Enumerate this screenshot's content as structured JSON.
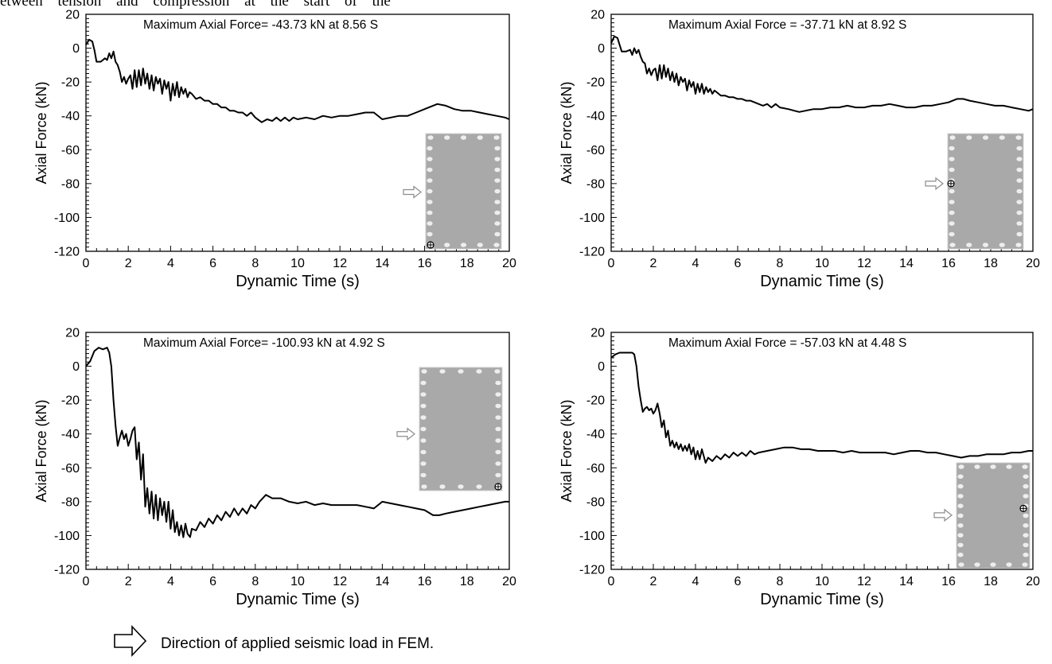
{
  "page_header_fragment": "etween tension and compression at the start of the",
  "footnote": "Direction of applied seismic load in FEM.",
  "chart_data": [
    {
      "type": "line",
      "title": "",
      "annotation": "Maximum Axial Force= -43.73 kN at 8.56 S",
      "xlabel": "Dynamic Time (s)",
      "ylabel": "Axial Force (kN)",
      "xlim": [
        0,
        20
      ],
      "ylim": [
        -120,
        20
      ],
      "xticks": [
        0,
        2,
        4,
        6,
        8,
        10,
        12,
        14,
        16,
        18,
        20
      ],
      "yticks": [
        20,
        0,
        -20,
        -40,
        -60,
        -80,
        -100,
        -120
      ],
      "series": [
        {
          "color": "#000000",
          "x": [
            0,
            0.15,
            0.3,
            0.4,
            0.5,
            0.7,
            0.9,
            1.0,
            1.1,
            1.2,
            1.3,
            1.4,
            1.5,
            1.6,
            1.7,
            1.8,
            1.9,
            2.0,
            2.1,
            2.2,
            2.3,
            2.4,
            2.5,
            2.6,
            2.7,
            2.8,
            2.9,
            3.0,
            3.1,
            3.2,
            3.3,
            3.4,
            3.5,
            3.6,
            3.7,
            3.8,
            3.9,
            4.0,
            4.1,
            4.2,
            4.3,
            4.4,
            4.5,
            4.6,
            4.7,
            4.8,
            4.9,
            5.0,
            5.2,
            5.4,
            5.6,
            5.8,
            6.0,
            6.2,
            6.4,
            6.6,
            6.8,
            7.0,
            7.2,
            7.4,
            7.6,
            7.8,
            8.0,
            8.3,
            8.56,
            8.8,
            9.0,
            9.2,
            9.4,
            9.6,
            9.8,
            10.0,
            10.4,
            10.8,
            11.2,
            11.6,
            12.0,
            12.4,
            12.8,
            13.2,
            13.6,
            14.0,
            14.4,
            14.8,
            15.2,
            15.6,
            16.0,
            16.4,
            16.6,
            17.0,
            17.4,
            17.8,
            18.2,
            18.6,
            19.0,
            19.4,
            19.8,
            20.0
          ],
          "y": [
            2,
            5,
            4,
            -1,
            -8,
            -8,
            -6,
            -7,
            -3,
            -6,
            -2,
            -8,
            -10,
            -14,
            -20,
            -17,
            -21,
            -18,
            -16,
            -24,
            -13,
            -23,
            -13,
            -22,
            -12,
            -21,
            -15,
            -24,
            -16,
            -25,
            -17,
            -21,
            -18,
            -27,
            -19,
            -24,
            -20,
            -31,
            -21,
            -28,
            -20,
            -29,
            -23,
            -27,
            -24,
            -29,
            -26,
            -27,
            -30,
            -29,
            -31,
            -31,
            -33,
            -33,
            -35,
            -35,
            -37,
            -37,
            -38,
            -38,
            -40,
            -38,
            -41,
            -43.73,
            -42,
            -43,
            -41,
            -43,
            -41,
            -43,
            -41,
            -42,
            -41,
            -42,
            -40,
            -41,
            -40,
            -40,
            -39,
            -38,
            -38,
            -42,
            -41,
            -40,
            -40,
            -38,
            -36,
            -34,
            -33,
            -34,
            -36,
            -37,
            -37,
            -38,
            -39,
            -40,
            -41,
            -42
          ]
        }
      ],
      "inset": {
        "arrow_y_data": -85,
        "marker": "bottom-left corner"
      }
    },
    {
      "type": "line",
      "title": "",
      "annotation": "Maximum Axial Force = -37.71 kN at 8.92 S",
      "xlabel": "Dynamic Time (s)",
      "ylabel": "Axial Force (kN)",
      "xlim": [
        0,
        20
      ],
      "ylim": [
        -120,
        20
      ],
      "xticks": [
        0,
        2,
        4,
        6,
        8,
        10,
        12,
        14,
        16,
        18,
        20
      ],
      "yticks": [
        20,
        0,
        -20,
        -40,
        -60,
        -80,
        -100,
        -120
      ],
      "series": [
        {
          "color": "#000000",
          "x": [
            0,
            0.15,
            0.3,
            0.4,
            0.5,
            0.7,
            0.9,
            1.0,
            1.1,
            1.2,
            1.3,
            1.4,
            1.5,
            1.6,
            1.7,
            1.8,
            1.9,
            2.0,
            2.1,
            2.2,
            2.3,
            2.4,
            2.5,
            2.6,
            2.7,
            2.8,
            2.9,
            3.0,
            3.1,
            3.2,
            3.3,
            3.4,
            3.5,
            3.6,
            3.7,
            3.8,
            3.9,
            4.0,
            4.1,
            4.2,
            4.3,
            4.4,
            4.5,
            4.6,
            4.7,
            4.8,
            4.9,
            5.0,
            5.2,
            5.4,
            5.6,
            5.8,
            6.0,
            6.2,
            6.4,
            6.6,
            6.8,
            7.0,
            7.2,
            7.4,
            7.6,
            7.8,
            8.0,
            8.4,
            8.7,
            8.92,
            9.2,
            9.6,
            10.0,
            10.4,
            10.8,
            11.2,
            11.6,
            12.0,
            12.4,
            12.8,
            13.2,
            13.6,
            14.0,
            14.4,
            14.8,
            15.2,
            15.6,
            16.0,
            16.4,
            16.7,
            17.0,
            17.4,
            17.8,
            18.2,
            18.6,
            19.0,
            19.4,
            19.8,
            20.0
          ],
          "y": [
            3,
            7,
            6,
            2,
            -2,
            -2,
            -1,
            -4,
            0,
            -3,
            -1,
            -5,
            -8,
            -9,
            -15,
            -12,
            -16,
            -13,
            -12,
            -19,
            -10,
            -18,
            -10,
            -17,
            -12,
            -19,
            -14,
            -20,
            -15,
            -22,
            -17,
            -20,
            -18,
            -25,
            -19,
            -23,
            -20,
            -27,
            -21,
            -26,
            -21,
            -27,
            -23,
            -26,
            -24,
            -27,
            -25,
            -26,
            -28,
            -28,
            -29,
            -29,
            -30,
            -30,
            -31,
            -31,
            -32,
            -33,
            -34,
            -33,
            -35,
            -33,
            -35,
            -36,
            -37,
            -37.71,
            -37,
            -36,
            -36,
            -35,
            -35,
            -34,
            -35,
            -35,
            -34,
            -34,
            -33,
            -34,
            -35,
            -35,
            -34,
            -34,
            -33,
            -32,
            -30,
            -30,
            -31,
            -32,
            -33,
            -34,
            -34,
            -35,
            -36,
            -37,
            -36
          ]
        }
      ],
      "inset": {
        "arrow_y_data": -80,
        "marker": "left edge"
      }
    },
    {
      "type": "line",
      "title": "",
      "annotation": "Maximum Axial Force= -100.93 kN at 4.92 S",
      "xlabel": "Dynamic Time (s)",
      "ylabel": "Axial Force (kN)",
      "xlim": [
        0,
        20
      ],
      "ylim": [
        -120,
        20
      ],
      "xticks": [
        0,
        2,
        4,
        6,
        8,
        10,
        12,
        14,
        16,
        18,
        20
      ],
      "yticks": [
        20,
        0,
        -20,
        -40,
        -60,
        -80,
        -100,
        -120
      ],
      "series": [
        {
          "color": "#000000",
          "x": [
            0,
            0.2,
            0.4,
            0.6,
            0.8,
            1.0,
            1.1,
            1.2,
            1.3,
            1.4,
            1.5,
            1.6,
            1.7,
            1.8,
            1.9,
            2.0,
            2.1,
            2.2,
            2.3,
            2.4,
            2.5,
            2.6,
            2.7,
            2.8,
            2.9,
            3.0,
            3.1,
            3.2,
            3.3,
            3.4,
            3.5,
            3.6,
            3.7,
            3.8,
            3.9,
            4.0,
            4.1,
            4.2,
            4.3,
            4.4,
            4.5,
            4.6,
            4.7,
            4.8,
            4.92,
            5.0,
            5.2,
            5.4,
            5.6,
            5.8,
            6.0,
            6.2,
            6.4,
            6.6,
            6.8,
            7.0,
            7.2,
            7.4,
            7.6,
            7.8,
            8.0,
            8.2,
            8.5,
            8.8,
            9.2,
            9.6,
            10.0,
            10.4,
            10.8,
            11.2,
            11.6,
            12.0,
            12.4,
            12.8,
            13.2,
            13.6,
            14.0,
            14.4,
            14.8,
            15.2,
            15.6,
            16.0,
            16.4,
            16.7,
            17.0,
            17.4,
            17.8,
            18.2,
            18.6,
            19.0,
            19.4,
            19.8,
            20.0
          ],
          "y": [
            0,
            3,
            9,
            11,
            10,
            11,
            8,
            0,
            -20,
            -35,
            -47,
            -42,
            -38,
            -43,
            -40,
            -47,
            -43,
            -38,
            -36,
            -55,
            -45,
            -67,
            -52,
            -83,
            -72,
            -87,
            -74,
            -90,
            -76,
            -91,
            -78,
            -88,
            -80,
            -92,
            -80,
            -96,
            -85,
            -98,
            -92,
            -100,
            -94,
            -101,
            -93,
            -99,
            -100.93,
            -96,
            -97,
            -92,
            -95,
            -90,
            -93,
            -88,
            -91,
            -86,
            -89,
            -84,
            -88,
            -84,
            -87,
            -82,
            -84,
            -80,
            -76,
            -78,
            -78,
            -80,
            -81,
            -80,
            -82,
            -81,
            -82,
            -82,
            -82,
            -82,
            -83,
            -84,
            -80,
            -81,
            -82,
            -83,
            -84,
            -85,
            -88,
            -88,
            -87,
            -86,
            -85,
            -84,
            -83,
            -82,
            -81,
            -80,
            -80
          ]
        }
      ],
      "inset": {
        "arrow_y_data": -40,
        "marker": "bottom-right corner"
      }
    },
    {
      "type": "line",
      "title": "",
      "annotation": "Maximum Axial Force = -57.03 kN at 4.48 S",
      "xlabel": "Dynamic Time (s)",
      "ylabel": "Axial Force (kN)",
      "xlim": [
        0,
        20
      ],
      "ylim": [
        -120,
        20
      ],
      "xticks": [
        0,
        2,
        4,
        6,
        8,
        10,
        12,
        14,
        16,
        18,
        20
      ],
      "yticks": [
        20,
        0,
        -20,
        -40,
        -60,
        -80,
        -100,
        -120
      ],
      "series": [
        {
          "color": "#000000",
          "x": [
            0,
            0.2,
            0.4,
            0.6,
            0.8,
            1.0,
            1.1,
            1.2,
            1.3,
            1.4,
            1.5,
            1.6,
            1.7,
            1.8,
            1.9,
            2.0,
            2.1,
            2.2,
            2.3,
            2.4,
            2.5,
            2.6,
            2.7,
            2.8,
            2.9,
            3.0,
            3.1,
            3.2,
            3.3,
            3.4,
            3.5,
            3.6,
            3.7,
            3.8,
            3.9,
            4.0,
            4.1,
            4.2,
            4.3,
            4.48,
            4.6,
            4.8,
            5.0,
            5.2,
            5.4,
            5.6,
            5.8,
            6.0,
            6.2,
            6.4,
            6.6,
            6.8,
            7.0,
            7.4,
            7.8,
            8.2,
            8.6,
            9.0,
            9.4,
            9.8,
            10.2,
            10.6,
            11.0,
            11.4,
            11.8,
            12.2,
            12.6,
            13.0,
            13.4,
            13.8,
            14.2,
            14.6,
            15.0,
            15.4,
            15.8,
            16.2,
            16.6,
            17.0,
            17.4,
            17.8,
            18.2,
            18.6,
            19.0,
            19.4,
            19.8,
            20.0
          ],
          "y": [
            5,
            7,
            8,
            8,
            8,
            8,
            7,
            0,
            -12,
            -20,
            -27,
            -25,
            -24,
            -26,
            -25,
            -28,
            -26,
            -22,
            -28,
            -36,
            -32,
            -42,
            -38,
            -47,
            -44,
            -48,
            -45,
            -49,
            -46,
            -50,
            -47,
            -50,
            -46,
            -52,
            -48,
            -55,
            -50,
            -55,
            -49,
            -57.03,
            -54,
            -56,
            -53,
            -55,
            -52,
            -54,
            -51,
            -53,
            -51,
            -53,
            -50,
            -52,
            -51,
            -50,
            -49,
            -48,
            -48,
            -49,
            -49,
            -50,
            -50,
            -50,
            -51,
            -50,
            -51,
            -51,
            -51,
            -51,
            -52,
            -51,
            -50,
            -50,
            -51,
            -51,
            -52,
            -53,
            -54,
            -53,
            -53,
            -52,
            -52,
            -52,
            -51,
            -51,
            -50,
            -50
          ]
        }
      ],
      "inset": {
        "arrow_y_data": -88,
        "marker": "right edge"
      }
    }
  ]
}
